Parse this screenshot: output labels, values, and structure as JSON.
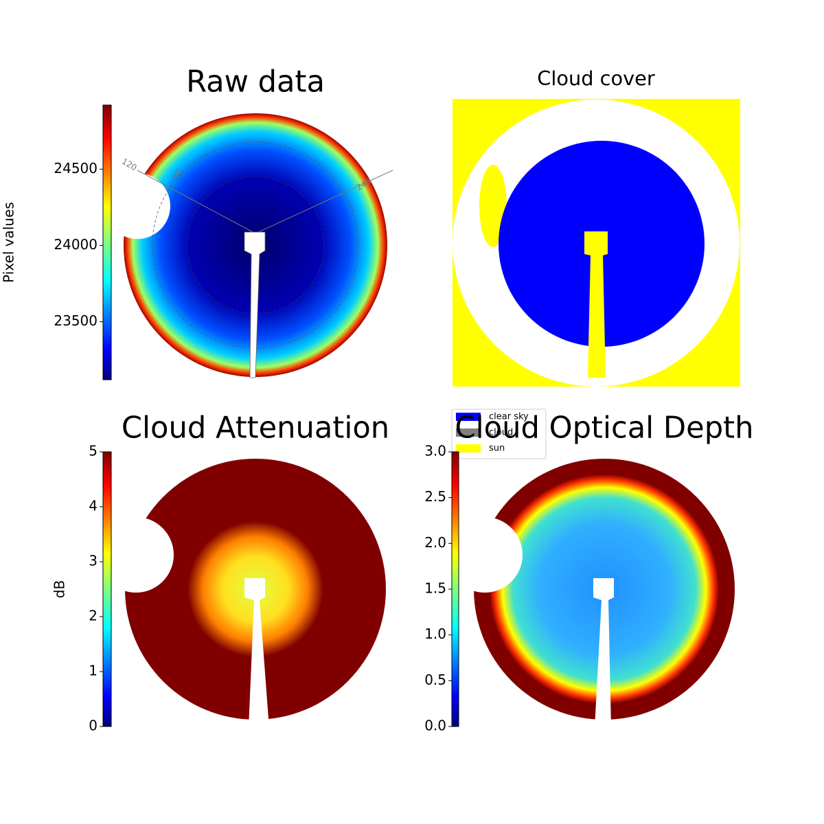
{
  "chart_data": [
    {
      "type": "image",
      "title": "Raw data",
      "colormap": "jet",
      "ylabel": "Pixel values",
      "ylim": [
        23120,
        24920
      ],
      "yticks": [
        23500,
        24000,
        24500
      ],
      "annotations": [
        "120",
        "60",
        "240"
      ]
    },
    {
      "type": "image",
      "title": "Cloud cover",
      "series": [
        {
          "name": "clear sky",
          "color": "#0000ff"
        },
        {
          "name": "cloud",
          "color": "#808080"
        },
        {
          "name": "sun",
          "color": "#ffff00"
        }
      ]
    },
    {
      "type": "image",
      "title": "Cloud Attenuation",
      "colormap": "jet",
      "ylabel": "dB",
      "ylim": [
        0,
        5
      ],
      "yticks": [
        0,
        1,
        2,
        3,
        4,
        5
      ]
    },
    {
      "type": "image",
      "title": "Cloud Optical Depth",
      "colormap": "jet",
      "ylim": [
        0,
        3
      ],
      "yticks": [
        {
          "value": 0,
          "label": "0.0"
        },
        {
          "value": 0.5,
          "label": "0.5"
        },
        {
          "value": 1,
          "label": "1.0"
        },
        {
          "value": 1.5,
          "label": "1.5"
        },
        {
          "value": 2,
          "label": "2.0"
        },
        {
          "value": 2.5,
          "label": "2.5"
        },
        {
          "value": 3,
          "label": "3.0"
        }
      ]
    }
  ]
}
